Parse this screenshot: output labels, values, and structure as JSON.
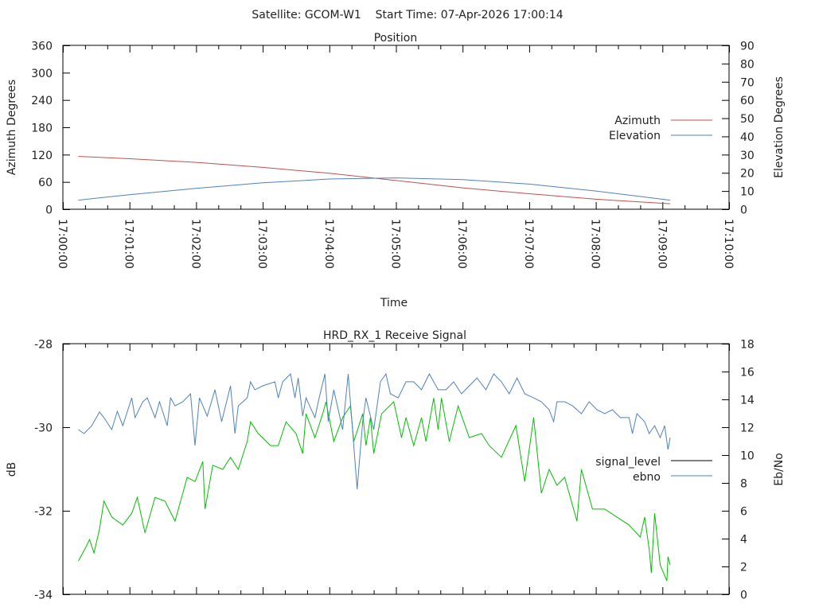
{
  "header": {
    "title": "Satellite: GCOM-W1    Start Time: 07-Apr-2026 17:00:14"
  },
  "colors": {
    "azimuth": "#c0504d",
    "elevation": "#4f81bd",
    "signal_level_plot": "#00c000",
    "signal_level_legend": "#000000",
    "ebno": "#4f81bd"
  },
  "chart_data": [
    {
      "type": "line",
      "title": "Position",
      "xlabel": "Time",
      "ylabel": "Azimuth Degrees",
      "y2label": "Elevation Degrees",
      "x_unit": "seconds after 17:00:00",
      "xlim": [
        0,
        600
      ],
      "ylim": [
        0,
        360
      ],
      "y2lim": [
        0,
        90
      ],
      "x_ticks": [
        0,
        60,
        120,
        180,
        240,
        300,
        360,
        420,
        480,
        540,
        600
      ],
      "x_tick_labels": [
        "17:00:00",
        "17:01:00",
        "17:02:00",
        "17:03:00",
        "17:04:00",
        "17:05:00",
        "17:06:00",
        "17:07:00",
        "17:08:00",
        "17:09:00",
        "17:10:00"
      ],
      "y_ticks": [
        0,
        60,
        120,
        180,
        240,
        300,
        360
      ],
      "y2_ticks": [
        0,
        10,
        20,
        30,
        40,
        50,
        60,
        70,
        80,
        90
      ],
      "legend": "right",
      "grid": false,
      "series": [
        {
          "name": "Azimuth",
          "axis": "y",
          "x": [
            14,
            60,
            120,
            180,
            240,
            300,
            360,
            420,
            480,
            547
          ],
          "values": [
            116,
            111,
            103,
            92,
            79,
            63,
            47,
            34,
            22,
            12
          ]
        },
        {
          "name": "Elevation",
          "axis": "y2",
          "x": [
            14,
            60,
            120,
            180,
            240,
            300,
            360,
            420,
            480,
            547
          ],
          "values": [
            5,
            8,
            11.5,
            14.5,
            16.6,
            17.2,
            16.3,
            13.8,
            10,
            5
          ]
        }
      ]
    },
    {
      "type": "line",
      "title": "HRD_RX_1 Receive Signal",
      "xlabel": "",
      "ylabel": "dB",
      "y2label": "Eb/No",
      "x_unit": "seconds after 17:00:00",
      "xlim": [
        0,
        600
      ],
      "ylim": [
        -34,
        -28
      ],
      "y2lim": [
        0,
        18
      ],
      "x_ticks": [
        0,
        60,
        120,
        180,
        240,
        300,
        360,
        420,
        480,
        540,
        600
      ],
      "y_ticks": [
        -34,
        -32,
        -30,
        -28
      ],
      "y2_ticks": [
        0,
        2,
        4,
        6,
        8,
        10,
        12,
        14,
        16,
        18
      ],
      "legend": "right",
      "grid": false,
      "series": [
        {
          "name": "signal_level",
          "axis": "y",
          "x": [
            14,
            20,
            24,
            28,
            33,
            37,
            44,
            54,
            62,
            67,
            74,
            83,
            92,
            101,
            112,
            119,
            126,
            128,
            135,
            144,
            151,
            158,
            166,
            169,
            176,
            187,
            194,
            201,
            210,
            216,
            219,
            227,
            234,
            237,
            244,
            252,
            259,
            262,
            270,
            273,
            277,
            280,
            287,
            298,
            305,
            309,
            316,
            323,
            327,
            334,
            338,
            341,
            348,
            356,
            366,
            377,
            384,
            395,
            408,
            416,
            424,
            431,
            438,
            445,
            452,
            463,
            467,
            477,
            488,
            499,
            510,
            520,
            524,
            528,
            530,
            533,
            538,
            544,
            545,
            547
          ],
          "values": [
            -33.2,
            -32.91,
            -32.69,
            -33.01,
            -32.44,
            -31.77,
            -32.15,
            -32.34,
            -32.06,
            -31.68,
            -32.53,
            -31.68,
            -31.77,
            -32.25,
            -31.2,
            -31.3,
            -30.82,
            -31.96,
            -30.91,
            -31.01,
            -30.72,
            -31.01,
            -30.34,
            -29.87,
            -30.15,
            -30.44,
            -30.44,
            -29.87,
            -30.15,
            -30.63,
            -29.68,
            -30.25,
            -29.68,
            -29.39,
            -30.34,
            -29.77,
            -29.49,
            -30.34,
            -29.68,
            -30.44,
            -29.77,
            -30.63,
            -29.68,
            -29.39,
            -30.25,
            -29.77,
            -30.44,
            -29.77,
            -30.34,
            -29.3,
            -30.06,
            -29.3,
            -30.34,
            -29.49,
            -30.25,
            -30.15,
            -30.44,
            -30.72,
            -29.96,
            -31.3,
            -29.77,
            -31.58,
            -31.01,
            -31.39,
            -31.2,
            -32.25,
            -31.01,
            -31.96,
            -31.96,
            -32.15,
            -32.34,
            -32.63,
            -32.15,
            -32.91,
            -33.49,
            -32.06,
            -33.3,
            -33.68,
            -33.1,
            -33.3
          ]
        },
        {
          "name": "ebno",
          "axis": "y2",
          "x": [
            14,
            19,
            26,
            33,
            37,
            44,
            49,
            54,
            62,
            65,
            72,
            76,
            83,
            87,
            94,
            97,
            101,
            108,
            115,
            119,
            123,
            130,
            137,
            143,
            151,
            155,
            158,
            166,
            169,
            173,
            180,
            191,
            194,
            198,
            205,
            209,
            212,
            216,
            219,
            227,
            230,
            236,
            239,
            244,
            252,
            257,
            262,
            265,
            270,
            273,
            280,
            286,
            291,
            295,
            302,
            309,
            316,
            323,
            330,
            338,
            345,
            352,
            359,
            366,
            373,
            381,
            388,
            395,
            402,
            409,
            416,
            424,
            431,
            438,
            442,
            445,
            452,
            459,
            467,
            474,
            481,
            488,
            495,
            502,
            510,
            513,
            517,
            524,
            528,
            533,
            538,
            542,
            545,
            547
          ],
          "values": [
            11.83,
            11.54,
            12.11,
            13.09,
            12.69,
            11.83,
            13.14,
            12.11,
            14.11,
            12.69,
            13.83,
            14.11,
            12.69,
            13.83,
            12.11,
            14.11,
            13.54,
            13.83,
            14.4,
            10.69,
            14.11,
            12.8,
            14.69,
            12.4,
            14.97,
            11.54,
            13.54,
            14.11,
            15.26,
            14.69,
            14.97,
            15.26,
            14.11,
            15.26,
            15.83,
            14.11,
            15.54,
            12.8,
            14.11,
            12.69,
            13.83,
            15.83,
            12.4,
            14.69,
            11.83,
            15.83,
            10.69,
            7.54,
            12.4,
            14.11,
            11.83,
            15.26,
            15.83,
            14.4,
            14.11,
            15.26,
            15.26,
            14.69,
            15.83,
            14.69,
            14.69,
            15.26,
            14.4,
            14.97,
            15.54,
            14.69,
            15.83,
            15.26,
            14.4,
            15.54,
            14.4,
            14.11,
            13.83,
            13.26,
            12.4,
            13.83,
            13.83,
            13.54,
            12.97,
            13.83,
            13.26,
            12.97,
            13.26,
            12.69,
            12.69,
            11.54,
            12.97,
            12.4,
            11.54,
            12.11,
            11.26,
            12.11,
            10.4,
            11.26
          ]
        }
      ]
    }
  ]
}
